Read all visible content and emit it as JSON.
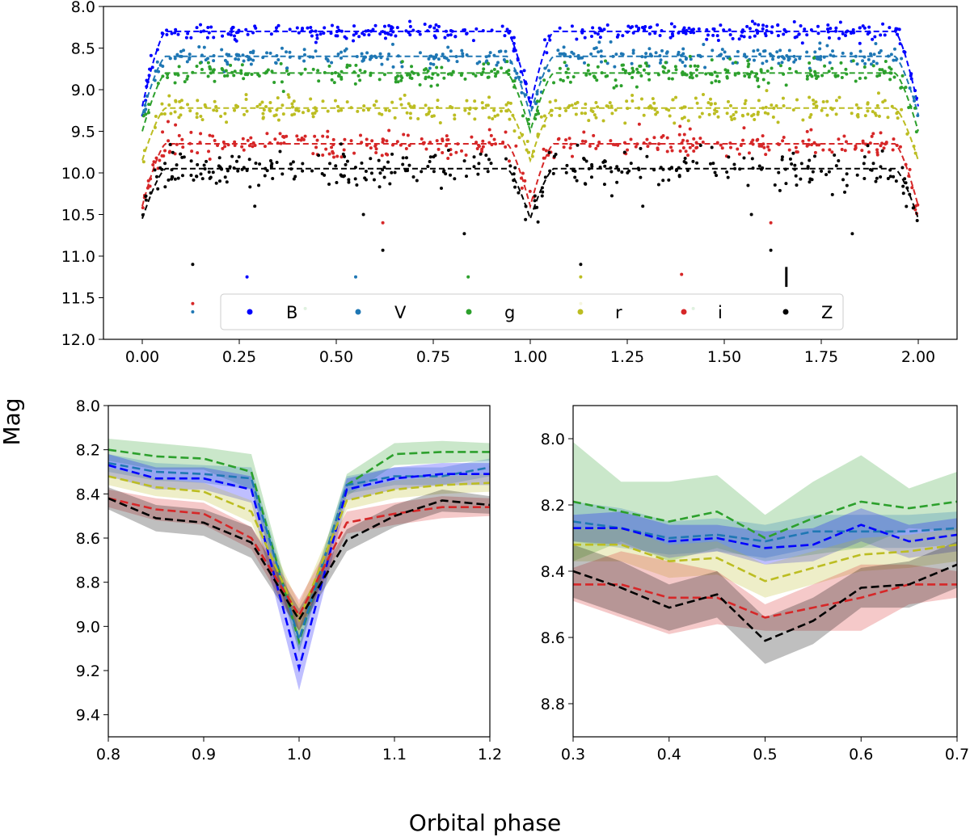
{
  "figure": {
    "ylabel": "Mag",
    "xlabel": "Orbital phase"
  },
  "chart_data": [
    {
      "id": "top",
      "type": "scatter",
      "title": "",
      "xlabel": "",
      "ylabel": "Mag",
      "xlim": [
        -0.1,
        2.1
      ],
      "ylim": [
        12.0,
        8.0
      ],
      "y_inverted": true,
      "xticks": [
        "0.00",
        "0.25",
        "0.50",
        "0.75",
        "1.00",
        "1.25",
        "1.50",
        "1.75",
        "2.00"
      ],
      "yticks": [
        "8.0",
        "8.5",
        "9.0",
        "9.5",
        "10.0",
        "10.5",
        "11.0",
        "11.5",
        "12.0"
      ],
      "legend": {
        "placement": "lower-center",
        "entries": [
          "B",
          "V",
          "g",
          "r",
          "i",
          "Z"
        ]
      },
      "series": [
        {
          "name": "B",
          "color": "#0000ff",
          "baseline_mag": 8.3,
          "eclipse_mag": 9.2,
          "scatter": 0.05
        },
        {
          "name": "V",
          "color": "#1f77b4",
          "baseline_mag": 8.6,
          "eclipse_mag": 9.3,
          "scatter": 0.06
        },
        {
          "name": "g",
          "color": "#2ca02c",
          "baseline_mag": 8.8,
          "eclipse_mag": 9.5,
          "scatter": 0.07
        },
        {
          "name": "r",
          "color": "#bcbd22",
          "baseline_mag": 9.22,
          "eclipse_mag": 9.85,
          "scatter": 0.08
        },
        {
          "name": "i",
          "color": "#d62728",
          "baseline_mag": 9.65,
          "eclipse_mag": 10.4,
          "scatter": 0.08
        },
        {
          "name": "Z",
          "color": "#000000",
          "baseline_mag": 9.95,
          "eclipse_mag": 10.55,
          "scatter": 0.1
        }
      ],
      "outliers": [
        {
          "series": "Z",
          "x": 0.13,
          "y": 11.1
        },
        {
          "series": "Z",
          "x": 0.29,
          "y": 10.4
        },
        {
          "series": "Z",
          "x": 0.57,
          "y": 10.5
        },
        {
          "series": "Z",
          "x": 0.62,
          "y": 10.93
        },
        {
          "series": "Z",
          "x": 0.83,
          "y": 10.73
        },
        {
          "series": "Z",
          "x": 1.13,
          "y": 11.1
        },
        {
          "series": "Z",
          "x": 1.29,
          "y": 10.4
        },
        {
          "series": "Z",
          "x": 1.57,
          "y": 10.5
        },
        {
          "series": "Z",
          "x": 1.62,
          "y": 10.93
        },
        {
          "series": "Z",
          "x": 1.83,
          "y": 10.73
        },
        {
          "series": "i",
          "x": 0.62,
          "y": 10.6
        },
        {
          "series": "i",
          "x": 1.62,
          "y": 10.6
        },
        {
          "series": "i",
          "x": 0.13,
          "y": 11.57
        },
        {
          "series": "i",
          "x": 1.39,
          "y": 11.22
        },
        {
          "series": "V",
          "x": 0.13,
          "y": 11.67
        },
        {
          "series": "V",
          "x": 0.55,
          "y": 11.25
        },
        {
          "series": "B",
          "x": 0.27,
          "y": 11.25
        },
        {
          "series": "g",
          "x": 0.84,
          "y": 11.25
        },
        {
          "series": "r",
          "x": 1.13,
          "y": 11.25
        },
        {
          "series": "g",
          "x": 0.42,
          "y": 11.63
        },
        {
          "series": "r",
          "x": 1.13,
          "y": 11.57
        },
        {
          "series": "g",
          "x": 1.42,
          "y": 11.63
        }
      ],
      "error_bar": {
        "x": 1.66,
        "y": 11.25,
        "err": 0.12
      }
    },
    {
      "id": "bottom-left",
      "type": "line",
      "title": "",
      "xlabel": "",
      "ylabel": "",
      "xlim": [
        0.8,
        1.2
      ],
      "ylim": [
        9.5,
        8.0
      ],
      "y_inverted": true,
      "xticks": [
        "0.8",
        "0.9",
        "1.0",
        "1.1",
        "1.2"
      ],
      "yticks": [
        "8.0",
        "8.2",
        "8.4",
        "8.6",
        "8.8",
        "9.0",
        "9.2",
        "9.4"
      ],
      "x": [
        0.8,
        0.85,
        0.9,
        0.95,
        1.0,
        1.05,
        1.1,
        1.15,
        1.2
      ],
      "series": [
        {
          "name": "g",
          "color": "#2ca02c",
          "values": [
            8.2,
            8.23,
            8.24,
            8.3,
            9.07,
            8.36,
            8.22,
            8.21,
            8.21
          ],
          "band": [
            0.05,
            0.06,
            0.05,
            0.08,
            0.05,
            0.05,
            0.05,
            0.05,
            0.04
          ]
        },
        {
          "name": "V",
          "color": "#1f77b4",
          "values": [
            8.26,
            8.3,
            8.31,
            8.33,
            9.06,
            8.36,
            8.32,
            8.32,
            8.28
          ],
          "band": [
            0.04,
            0.04,
            0.04,
            0.05,
            0.05,
            0.04,
            0.04,
            0.04,
            0.04
          ]
        },
        {
          "name": "B",
          "color": "#0000ff",
          "values": [
            8.27,
            8.33,
            8.33,
            8.38,
            9.19,
            8.38,
            8.33,
            8.31,
            8.31
          ],
          "band": [
            0.05,
            0.05,
            0.05,
            0.06,
            0.1,
            0.05,
            0.05,
            0.05,
            0.05
          ]
        },
        {
          "name": "r",
          "color": "#bcbd22",
          "values": [
            8.32,
            8.37,
            8.39,
            8.48,
            8.97,
            8.43,
            8.38,
            8.36,
            8.35
          ],
          "band": [
            0.04,
            0.04,
            0.04,
            0.05,
            0.07,
            0.04,
            0.04,
            0.04,
            0.04
          ]
        },
        {
          "name": "i",
          "color": "#d62728",
          "values": [
            8.42,
            8.47,
            8.49,
            8.6,
            8.95,
            8.53,
            8.49,
            8.46,
            8.46
          ],
          "band": [
            0.04,
            0.05,
            0.05,
            0.05,
            0.07,
            0.05,
            0.05,
            0.05,
            0.04
          ]
        },
        {
          "name": "Z",
          "color": "#000000",
          "values": [
            8.42,
            8.51,
            8.53,
            8.62,
            8.97,
            8.61,
            8.5,
            8.43,
            8.45
          ],
          "band": [
            0.05,
            0.06,
            0.06,
            0.07,
            0.05,
            0.05,
            0.05,
            0.05,
            0.04
          ]
        }
      ]
    },
    {
      "id": "bottom-right",
      "type": "line",
      "title": "",
      "xlabel": "",
      "ylabel": "",
      "xlim": [
        0.3,
        0.7
      ],
      "ylim": [
        8.9,
        7.9
      ],
      "y_inverted": true,
      "xticks": [
        "0.3",
        "0.4",
        "0.5",
        "0.6",
        "0.7"
      ],
      "yticks": [
        "8.0",
        "8.2",
        "8.4",
        "8.6",
        "8.8"
      ],
      "x": [
        0.3,
        0.35,
        0.4,
        0.45,
        0.5,
        0.55,
        0.6,
        0.65,
        0.7
      ],
      "series": [
        {
          "name": "g",
          "color": "#2ca02c",
          "values": [
            8.19,
            8.22,
            8.25,
            8.22,
            8.3,
            8.24,
            8.19,
            8.21,
            8.19
          ],
          "band": [
            0.18,
            0.09,
            0.12,
            0.11,
            0.07,
            0.11,
            0.14,
            0.06,
            0.09
          ]
        },
        {
          "name": "V",
          "color": "#1f77b4",
          "values": [
            8.25,
            8.27,
            8.3,
            8.29,
            8.31,
            8.28,
            8.28,
            8.28,
            8.27
          ],
          "band": [
            0.06,
            0.06,
            0.05,
            0.05,
            0.05,
            0.05,
            0.05,
            0.05,
            0.05
          ]
        },
        {
          "name": "B",
          "color": "#0000ff",
          "values": [
            8.27,
            8.27,
            8.31,
            8.3,
            8.33,
            8.32,
            8.26,
            8.31,
            8.29
          ],
          "band": [
            0.04,
            0.05,
            0.05,
            0.04,
            0.05,
            0.05,
            0.05,
            0.05,
            0.05
          ]
        },
        {
          "name": "r",
          "color": "#bcbd22",
          "values": [
            8.32,
            8.32,
            8.37,
            8.36,
            8.43,
            8.39,
            8.35,
            8.34,
            8.32
          ],
          "band": [
            0.05,
            0.05,
            0.05,
            0.05,
            0.05,
            0.05,
            0.05,
            0.05,
            0.05
          ]
        },
        {
          "name": "i",
          "color": "#d62728",
          "values": [
            8.44,
            8.44,
            8.48,
            8.48,
            8.54,
            8.51,
            8.48,
            8.44,
            8.44
          ],
          "band": [
            0.05,
            0.1,
            0.11,
            0.08,
            0.04,
            0.07,
            0.1,
            0.06,
            0.04
          ]
        },
        {
          "name": "Z",
          "color": "#000000",
          "values": [
            8.4,
            8.45,
            8.51,
            8.47,
            8.61,
            8.55,
            8.45,
            8.44,
            8.38
          ],
          "band": [
            0.08,
            0.08,
            0.07,
            0.07,
            0.07,
            0.07,
            0.06,
            0.07,
            0.07
          ]
        }
      ]
    }
  ]
}
